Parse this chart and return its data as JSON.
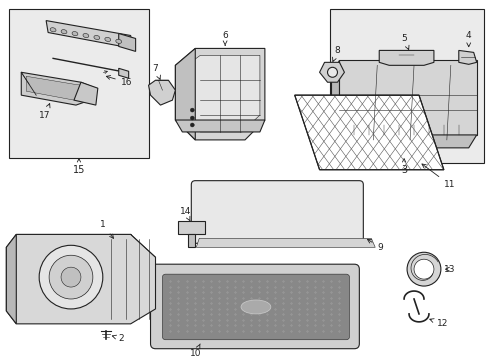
{
  "bg_color": "#ffffff",
  "line_color": "#222222",
  "box_fill": "#ebebeb",
  "fig_width": 4.89,
  "fig_height": 3.6,
  "dpi": 100
}
